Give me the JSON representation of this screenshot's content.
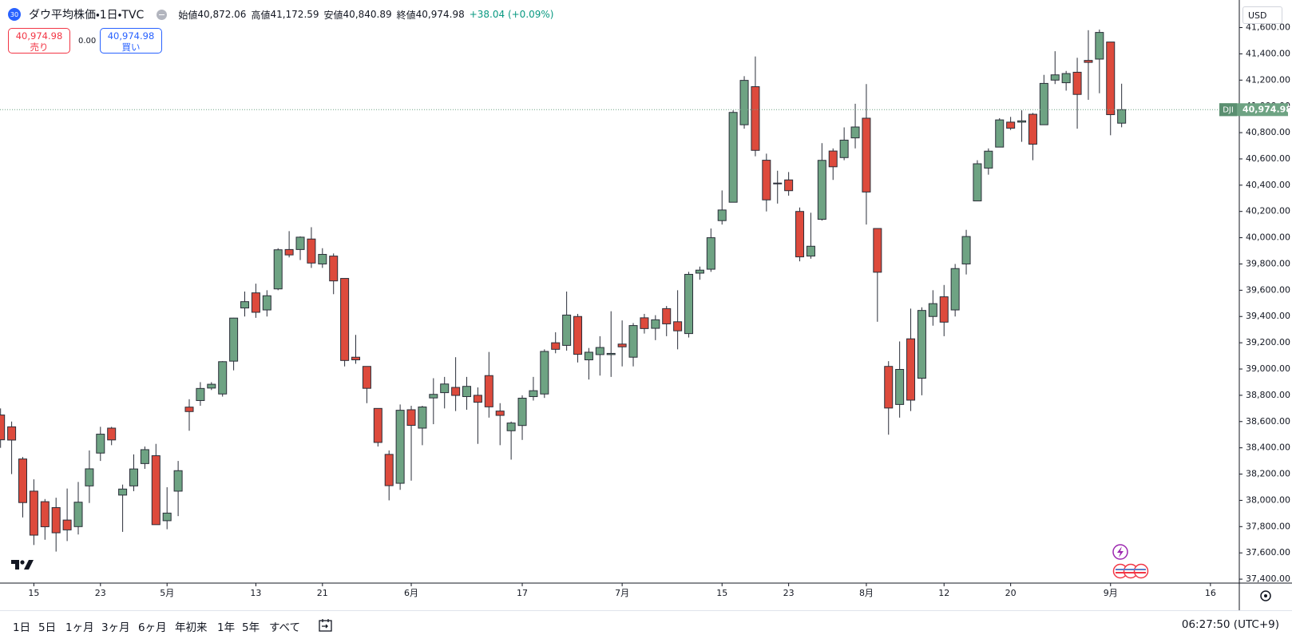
{
  "header": {
    "badge": "30",
    "symbol": "ダウ平均株価・1日・TVC",
    "ohlc": [
      {
        "label": "始値",
        "value": "40,872.06"
      },
      {
        "label": "高値",
        "value": "41,172.59"
      },
      {
        "label": "安値",
        "value": "40,840.89"
      },
      {
        "label": "終値",
        "value": "40,974.98"
      }
    ],
    "change": "+38.04 (+0.09%)",
    "sell": {
      "price": "40,974.98",
      "label": "売り"
    },
    "spread": "0.00",
    "buy": {
      "price": "40,974.98",
      "label": "買い"
    },
    "currency": "USD"
  },
  "toolbar": {
    "ranges": [
      "1日",
      "5日",
      "1ヶ月",
      "3ヶ月",
      "6ヶ月",
      "年初来",
      "1年",
      "5年",
      "すべて"
    ],
    "time": "06:27:50 (UTC+9)"
  },
  "chart_data": {
    "type": "candlestick",
    "last_price": {
      "name": "DJI",
      "label": "40,974.98"
    },
    "up_color": "#6ea383",
    "down_color": "#dd4a3c",
    "grid": false,
    "xlim": [
      -0.05,
      111.6
    ],
    "xticks": [
      {
        "value": 3,
        "label": "15"
      },
      {
        "value": 9,
        "label": "23"
      },
      {
        "value": 15,
        "label": "5月"
      },
      {
        "value": 23,
        "label": "13"
      },
      {
        "value": 29,
        "label": "21"
      },
      {
        "value": 37,
        "label": "6月"
      },
      {
        "value": 47,
        "label": "17"
      },
      {
        "value": 56,
        "label": "7月"
      },
      {
        "value": 65,
        "label": "15"
      },
      {
        "value": 71,
        "label": "23"
      },
      {
        "value": 78,
        "label": "8月"
      },
      {
        "value": 85,
        "label": "12"
      },
      {
        "value": 91,
        "label": "20"
      },
      {
        "value": 100,
        "label": "9月"
      },
      {
        "value": 109,
        "label": "16"
      }
    ],
    "ylim": [
      37370,
      41810
    ],
    "yticks": [
      {
        "value": 37400,
        "label": "37,400.00"
      },
      {
        "value": 37600,
        "label": "37,600.00"
      },
      {
        "value": 37800,
        "label": "37,800.00"
      },
      {
        "value": 38000,
        "label": "38,000.00"
      },
      {
        "value": 38200,
        "label": "38,200.00"
      },
      {
        "value": 38400,
        "label": "38,400.00"
      },
      {
        "value": 38600,
        "label": "38,600.00"
      },
      {
        "value": 38800,
        "label": "38,800.00"
      },
      {
        "value": 39000,
        "label": "39,000.00"
      },
      {
        "value": 39200,
        "label": "39,200.00"
      },
      {
        "value": 39400,
        "label": "39,400.00"
      },
      {
        "value": 39600,
        "label": "39,600.00"
      },
      {
        "value": 39800,
        "label": "39,800.00"
      },
      {
        "value": 40000,
        "label": "40,000.00"
      },
      {
        "value": 40200,
        "label": "40,200.00"
      },
      {
        "value": 40400,
        "label": "40,400.00"
      },
      {
        "value": 40600,
        "label": "40,600.00"
      },
      {
        "value": 40800,
        "label": "40,800.00"
      },
      {
        "value": 41000,
        "label": "41,000.00"
      },
      {
        "value": 41200,
        "label": "41,200.00"
      },
      {
        "value": 41400,
        "label": "41,400.00"
      },
      {
        "value": 41600,
        "label": "41,600.00"
      }
    ],
    "open": [
      38650,
      38560,
      38315,
      38070,
      37990,
      37945,
      37850,
      37800,
      38110,
      38360,
      38550,
      38040,
      38110,
      38280,
      38340,
      37845,
      38070,
      38710,
      38760,
      38855,
      38810,
      39060,
      39465,
      39580,
      39450,
      39610,
      39910,
      39910,
      39990,
      39800,
      39860,
      39690,
      39090,
      39020,
      38700,
      38350,
      38130,
      38690,
      38550,
      38780,
      38820,
      38860,
      38790,
      38800,
      38950,
      38680,
      38530,
      38570,
      38790,
      38810,
      39200,
      39180,
      39400,
      39070,
      39110,
      39110,
      39190,
      39090,
      39390,
      39310,
      39460,
      39360,
      39270,
      39730,
      39760,
      40130,
      40270,
      40860,
      41150,
      40590,
      40410,
      40440,
      40200,
      39860,
      40140,
      40660,
      40610,
      40760,
      40910,
      40070,
      39020,
      38730,
      39230,
      38930,
      39400,
      39550,
      39450,
      39800,
      40280,
      40530,
      40690,
      40880,
      40880,
      40940,
      40860,
      41200,
      41180,
      41260,
      41350,
      41360,
      41490,
      40872.06
    ],
    "high": [
      38700,
      38600,
      38330,
      38160,
      38010,
      38020,
      38090,
      38140,
      38380,
      38560,
      38560,
      38120,
      38350,
      38410,
      38430,
      38100,
      38300,
      38770,
      38900,
      38900,
      39060,
      39390,
      39590,
      39650,
      39600,
      39920,
      40050,
      40010,
      40080,
      39920,
      39880,
      39690,
      39260,
      39020,
      38700,
      38380,
      38730,
      38720,
      38720,
      38930,
      38940,
      39090,
      38940,
      38860,
      39130,
      38740,
      38600,
      38800,
      38940,
      39150,
      39280,
      39590,
      39420,
      39160,
      39250,
      39440,
      39370,
      39350,
      39420,
      39410,
      39480,
      39600,
      39740,
      39780,
      40070,
      40360,
      40970,
      41230,
      41380,
      40640,
      40510,
      40500,
      40230,
      40190,
      40720,
      40680,
      40840,
      41020,
      41170,
      40070,
      39060,
      39210,
      39460,
      39470,
      39600,
      39640,
      39800,
      40060,
      40590,
      40680,
      40910,
      40920,
      40970,
      40950,
      41240,
      41420,
      41270,
      41370,
      41580,
      41585,
      41490,
      41172.59
    ],
    "low": [
      38400,
      38200,
      37870,
      37660,
      37700,
      37610,
      37690,
      37740,
      37980,
      38300,
      38420,
      37760,
      38070,
      38240,
      37815,
      37780,
      37880,
      38530,
      38720,
      38840,
      38790,
      38990,
      39400,
      39390,
      39400,
      39600,
      39850,
      39830,
      39770,
      39770,
      39570,
      39020,
      39040,
      38740,
      38410,
      38000,
      38080,
      38150,
      38420,
      38580,
      38700,
      38680,
      38690,
      38430,
      38630,
      38420,
      38310,
      38460,
      38760,
      38780,
      39120,
      39140,
      39050,
      38920,
      38950,
      38940,
      39020,
      39020,
      39270,
      39220,
      39250,
      39150,
      39240,
      39680,
      39740,
      40100,
      40270,
      40830,
      40620,
      40200,
      40260,
      40320,
      39820,
      39840,
      40130,
      40440,
      40590,
      40680,
      40100,
      39360,
      38500,
      38630,
      38680,
      38800,
      39330,
      39250,
      39400,
      39720,
      40280,
      40480,
      40690,
      40820,
      40730,
      40590,
      40860,
      41170,
      41120,
      40830,
      41050,
      41100,
      40780,
      40840.89
    ],
    "close": [
      38461,
      38459,
      37983,
      37735,
      37799,
      37753,
      37775,
      37986,
      38240,
      38504,
      38460,
      38086,
      38239,
      38386,
      37815,
      37903,
      38226,
      38676,
      38852,
      38884,
      39056,
      39388,
      39513,
      39432,
      39558,
      39908,
      39869,
      40004,
      39807,
      39873,
      39671,
      39065,
      39070,
      38853,
      38441,
      38112,
      38686,
      38571,
      38711,
      38807,
      38886,
      38799,
      38868,
      38747,
      38712,
      38647,
      38589,
      38778,
      38835,
      39134,
      39150,
      39411,
      39112,
      39128,
      39164,
      39119,
      39169,
      39331,
      39308,
      39375,
      39344,
      39291,
      39721,
      39753,
      40000,
      40211,
      40954,
      41198,
      40665,
      40288,
      40416,
      40358,
      39854,
      39935,
      40589,
      40540,
      40743,
      40843,
      40348,
      39737,
      38703,
      38997,
      38763,
      39446,
      39498,
      39357,
      39765,
      40009,
      40563,
      40659,
      40897,
      40834,
      40890,
      40712,
      41175,
      41240,
      41250,
      41091,
      41335,
      41563,
      40937,
      40974.98
    ]
  }
}
